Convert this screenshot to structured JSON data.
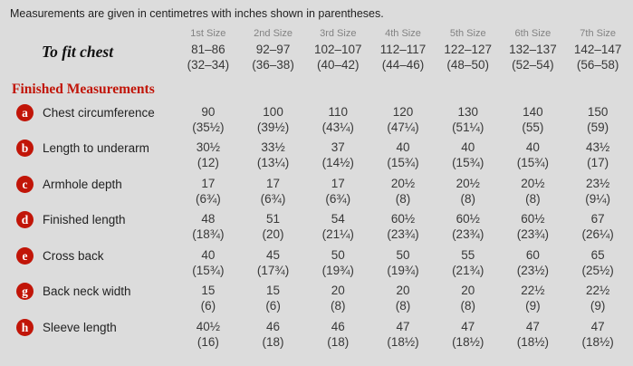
{
  "note": "Measurements are given in centimetres with inches shown in parentheses.",
  "colors": {
    "background": "#dcdcdc",
    "accent_red": "#c11508",
    "size_header_gray": "#828282",
    "value_text": "#383838"
  },
  "table": {
    "size_headers": [
      "1st Size",
      "2nd Size",
      "3rd Size",
      "4th Size",
      "5th Size",
      "6th Size",
      "7th Size"
    ],
    "to_fit_chest": {
      "label": "To fit chest",
      "cm": [
        "81–86",
        "92–97",
        "102–107",
        "112–117",
        "122–127",
        "132–137",
        "142–147"
      ],
      "inches": [
        "(32–34)",
        "(36–38)",
        "(40–42)",
        "(44–46)",
        "(48–50)",
        "(52–54)",
        "(56–58)"
      ]
    },
    "section_heading": "Finished Measurements",
    "rows": [
      {
        "key": "a",
        "label": "Chest circumference",
        "cm": [
          "90",
          "100",
          "110",
          "120",
          "130",
          "140",
          "150"
        ],
        "inches": [
          "(35½)",
          "(39½)",
          "(43¼)",
          "(47¼)",
          "(51¼)",
          "(55)",
          "(59)"
        ]
      },
      {
        "key": "b",
        "label": "Length to underarm",
        "cm": [
          "30½",
          "33½",
          "37",
          "40",
          "40",
          "40",
          "43½"
        ],
        "inches": [
          "(12)",
          "(13¼)",
          "(14½)",
          "(15¾)",
          "(15¾)",
          "(15¾)",
          "(17)"
        ]
      },
      {
        "key": "c",
        "label": "Armhole depth",
        "cm": [
          "17",
          "17",
          "17",
          "20½",
          "20½",
          "20½",
          "23½"
        ],
        "inches": [
          "(6¾)",
          "(6¾)",
          "(6¾)",
          "(8)",
          "(8)",
          "(8)",
          "(9¼)"
        ]
      },
      {
        "key": "d",
        "label": "Finished length",
        "cm": [
          "48",
          "51",
          "54",
          "60½",
          "60½",
          "60½",
          "67"
        ],
        "inches": [
          "(18¾)",
          "(20)",
          "(21¼)",
          "(23¾)",
          "(23¾)",
          "(23¾)",
          "(26¼)"
        ]
      },
      {
        "key": "e",
        "label": "Cross back",
        "cm": [
          "40",
          "45",
          "50",
          "50",
          "55",
          "60",
          "65"
        ],
        "inches": [
          "(15¾)",
          "(17¾)",
          "(19¾)",
          "(19¾)",
          "(21¾)",
          "(23½)",
          "(25½)"
        ]
      },
      {
        "key": "g",
        "label": "Back neck width",
        "cm": [
          "15",
          "15",
          "20",
          "20",
          "20",
          "22½",
          "22½"
        ],
        "inches": [
          "(6)",
          "(6)",
          "(8)",
          "(8)",
          "(8)",
          "(9)",
          "(9)"
        ]
      },
      {
        "key": "h",
        "label": "Sleeve length",
        "cm": [
          "40½",
          "46",
          "46",
          "47",
          "47",
          "47",
          "47"
        ],
        "inches": [
          "(16)",
          "(18)",
          "(18)",
          "(18½)",
          "(18½)",
          "(18½)",
          "(18½)"
        ]
      }
    ]
  }
}
